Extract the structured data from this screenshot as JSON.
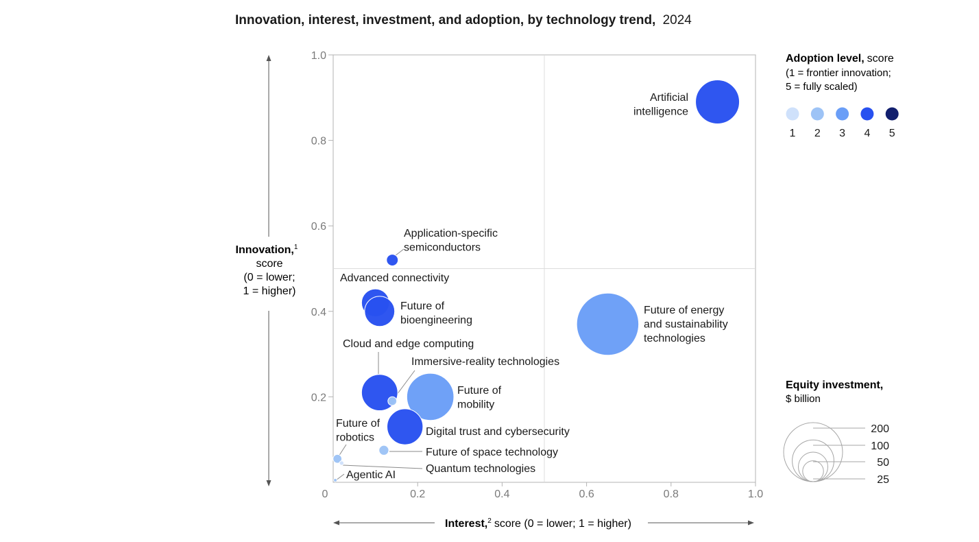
{
  "chart_data": {
    "type": "scatter",
    "title": "Innovation, interest, investment, and adoption, by technology trend,",
    "title_year": "2024",
    "xlabel": "Interest,",
    "xlabel_sup": "2",
    "xlabel_rest": "score (0 = lower; 1 = higher)",
    "ylabel": "Innovation,",
    "ylabel_sup": "1",
    "ylabel_lines": [
      "score",
      "(0 = lower;",
      "1 = higher)"
    ],
    "xlim": [
      0,
      1
    ],
    "ylim": [
      0,
      1
    ],
    "x_ticks": [
      "0",
      "0.2",
      "0.4",
      "0.6",
      "0.8",
      "1.0"
    ],
    "y_ticks": [
      "0.2",
      "0.4",
      "0.6",
      "0.8",
      "1.0"
    ],
    "x_tick_values": [
      0,
      0.2,
      0.4,
      0.6,
      0.8,
      1.0
    ],
    "y_tick_values": [
      0.2,
      0.4,
      0.6,
      0.8,
      1.0
    ],
    "quadrant_lines": {
      "x": 0.5,
      "y": 0.5
    },
    "adoption_colors": {
      "1": "#cfe1fb",
      "2": "#9dc3f6",
      "3": "#6a9ef7",
      "4": "#2851f0",
      "5": "#121f6e"
    },
    "points": [
      {
        "label_lines": [
          "Artificial",
          "intelligence"
        ],
        "x": 0.91,
        "y": 0.89,
        "adoption": 4,
        "investment": 100
      },
      {
        "label_lines": [
          "Application-specific",
          "semiconductors"
        ],
        "x": 0.14,
        "y": 0.52,
        "adoption": 4,
        "investment": 7
      },
      {
        "label_lines": [
          "Advanced connectivity"
        ],
        "x": 0.1,
        "y": 0.42,
        "adoption": 4,
        "investment": 40
      },
      {
        "label_lines": [
          "Future of",
          "bioengineering"
        ],
        "x": 0.11,
        "y": 0.4,
        "adoption": 4,
        "investment": 47
      },
      {
        "label_lines": [
          "Future of energy",
          "and sustainability",
          "technologies"
        ],
        "x": 0.65,
        "y": 0.37,
        "adoption": 3,
        "investment": 200
      },
      {
        "label_lines": [
          "Cloud and edge computing"
        ],
        "x": 0.11,
        "y": 0.21,
        "adoption": 4,
        "investment": 68
      },
      {
        "label_lines": [
          "Immersive-reality technologies"
        ],
        "x": 0.14,
        "y": 0.19,
        "adoption": 2,
        "investment": 4
      },
      {
        "label_lines": [
          "Future of",
          "mobility"
        ],
        "x": 0.23,
        "y": 0.2,
        "adoption": 3,
        "investment": 115
      },
      {
        "label_lines": [
          "Digital trust and cybersecurity"
        ],
        "x": 0.17,
        "y": 0.13,
        "adoption": 4,
        "investment": 67
      },
      {
        "label_lines": [
          "Future of space technology"
        ],
        "x": 0.12,
        "y": 0.075,
        "adoption": 2,
        "investment": 5
      },
      {
        "label_lines": [
          "Future of",
          "robotics"
        ],
        "x": 0.01,
        "y": 0.055,
        "adoption": 2,
        "investment": 4
      },
      {
        "label_lines": [
          "Quantum technologies"
        ],
        "x": 0.02,
        "y": 0.045,
        "adoption": 1,
        "investment": 1
      },
      {
        "label_lines": [
          "Agentic AI"
        ],
        "x": 0.005,
        "y": 0.005,
        "adoption": 2,
        "investment": 0.3
      }
    ],
    "legend_adoption": {
      "title": "Adoption level,",
      "title_rest": "score",
      "subtitle_lines": [
        "(1 = frontier innovation;",
        "5 = fully scaled)"
      ],
      "levels": [
        "1",
        "2",
        "3",
        "4",
        "5"
      ]
    },
    "legend_investment": {
      "title": "Equity investment,",
      "subtitle": "$ billion",
      "sizes": [
        {
          "value": 200,
          "label": "200"
        },
        {
          "value": 100,
          "label": "100"
        },
        {
          "value": 50,
          "label": "50"
        },
        {
          "value": 25,
          "label": "25"
        }
      ]
    }
  }
}
